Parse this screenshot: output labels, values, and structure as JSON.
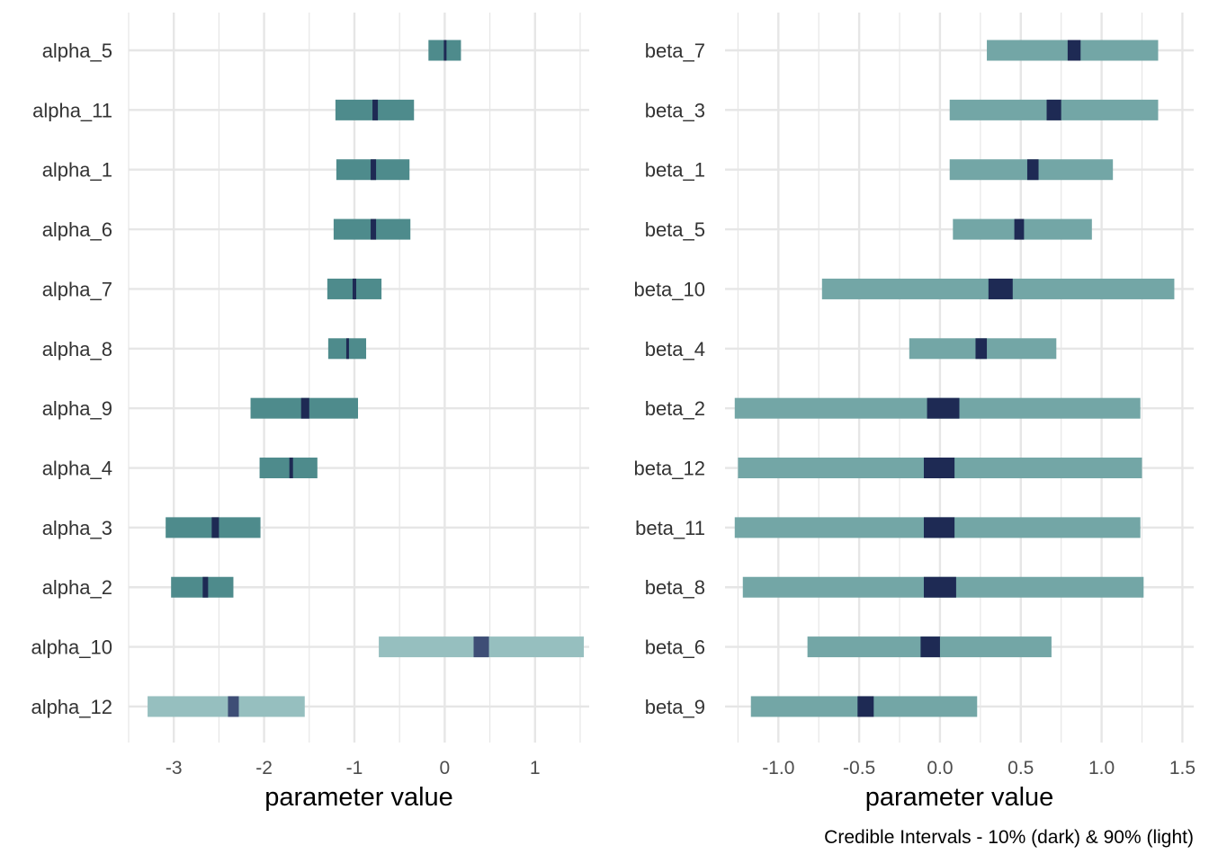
{
  "chart_data": [
    {
      "type": "interval",
      "xlabel": "parameter value",
      "xlim": [
        -3.5,
        1.6
      ],
      "xticks": [
        -3,
        -2,
        -1,
        0,
        1
      ],
      "xtick_labels": [
        "-3",
        "-2",
        "-1",
        "0",
        "1"
      ],
      "grid": true,
      "rows": [
        {
          "name": "alpha_5",
          "outer": [
            -0.18,
            0.18
          ],
          "inner": [
            -0.01,
            0.01
          ],
          "light": false
        },
        {
          "name": "alpha_11",
          "outer": [
            -1.21,
            -0.34
          ],
          "inner": [
            -0.8,
            -0.74
          ],
          "light": false
        },
        {
          "name": "alpha_1",
          "outer": [
            -1.2,
            -0.39
          ],
          "inner": [
            -0.82,
            -0.76
          ],
          "light": false
        },
        {
          "name": "alpha_6",
          "outer": [
            -1.23,
            -0.38
          ],
          "inner": [
            -0.82,
            -0.76
          ],
          "light": false
        },
        {
          "name": "alpha_7",
          "outer": [
            -1.3,
            -0.7
          ],
          "inner": [
            -1.02,
            -0.98
          ],
          "light": false
        },
        {
          "name": "alpha_8",
          "outer": [
            -1.29,
            -0.87
          ],
          "inner": [
            -1.09,
            -1.07
          ],
          "light": false
        },
        {
          "name": "alpha_9",
          "outer": [
            -2.15,
            -0.96
          ],
          "inner": [
            -1.59,
            -1.5
          ],
          "light": false
        },
        {
          "name": "alpha_4",
          "outer": [
            -2.05,
            -1.41
          ],
          "inner": [
            -1.72,
            -1.68
          ],
          "light": false
        },
        {
          "name": "alpha_3",
          "outer": [
            -3.09,
            -2.04
          ],
          "inner": [
            -2.58,
            -2.5
          ],
          "light": false
        },
        {
          "name": "alpha_2",
          "outer": [
            -3.03,
            -2.34
          ],
          "inner": [
            -2.68,
            -2.62
          ],
          "light": false
        },
        {
          "name": "alpha_10",
          "outer": [
            -0.73,
            1.54
          ],
          "inner": [
            0.32,
            0.49
          ],
          "light": true
        },
        {
          "name": "alpha_12",
          "outer": [
            -3.29,
            -1.55
          ],
          "inner": [
            -2.4,
            -2.28
          ],
          "light": true
        }
      ]
    },
    {
      "type": "interval",
      "xlabel": "parameter value",
      "xlim": [
        -1.33,
        1.57
      ],
      "xticks": [
        -1.0,
        -0.5,
        0.0,
        0.5,
        1.0,
        1.5
      ],
      "xtick_labels": [
        "-1.0",
        "-0.5",
        "0.0",
        "0.5",
        "1.0",
        "1.5"
      ],
      "grid": true,
      "rows": [
        {
          "name": "beta_7",
          "outer": [
            0.29,
            1.35
          ],
          "inner": [
            0.79,
            0.87
          ]
        },
        {
          "name": "beta_3",
          "outer": [
            0.06,
            1.35
          ],
          "inner": [
            0.66,
            0.75
          ]
        },
        {
          "name": "beta_1",
          "outer": [
            0.06,
            1.07
          ],
          "inner": [
            0.54,
            0.61
          ]
        },
        {
          "name": "beta_5",
          "outer": [
            0.08,
            0.94
          ],
          "inner": [
            0.46,
            0.52
          ]
        },
        {
          "name": "beta_10",
          "outer": [
            -0.73,
            1.45
          ],
          "inner": [
            0.3,
            0.45
          ]
        },
        {
          "name": "beta_4",
          "outer": [
            -0.19,
            0.72
          ],
          "inner": [
            0.22,
            0.29
          ]
        },
        {
          "name": "beta_2",
          "outer": [
            -1.27,
            1.24
          ],
          "inner": [
            -0.08,
            0.12
          ]
        },
        {
          "name": "beta_12",
          "outer": [
            -1.25,
            1.25
          ],
          "inner": [
            -0.1,
            0.09
          ]
        },
        {
          "name": "beta_11",
          "outer": [
            -1.27,
            1.24
          ],
          "inner": [
            -0.1,
            0.09
          ]
        },
        {
          "name": "beta_8",
          "outer": [
            -1.22,
            1.26
          ],
          "inner": [
            -0.1,
            0.1
          ]
        },
        {
          "name": "beta_6",
          "outer": [
            -0.82,
            0.69
          ],
          "inner": [
            -0.12,
            0.0
          ]
        },
        {
          "name": "beta_9",
          "outer": [
            -1.17,
            0.23
          ],
          "inner": [
            -0.51,
            -0.41
          ]
        }
      ]
    }
  ],
  "caption": "Credible Intervals - 10% (dark) & 90% (light)",
  "colors": {
    "outer": "#4e8b8c",
    "outer_right": "#73a6a6",
    "outer_light": "#96bfbf",
    "inner": "#1e2a54",
    "inner_light": "#3e4e76",
    "grid": "#e6e6e6"
  }
}
